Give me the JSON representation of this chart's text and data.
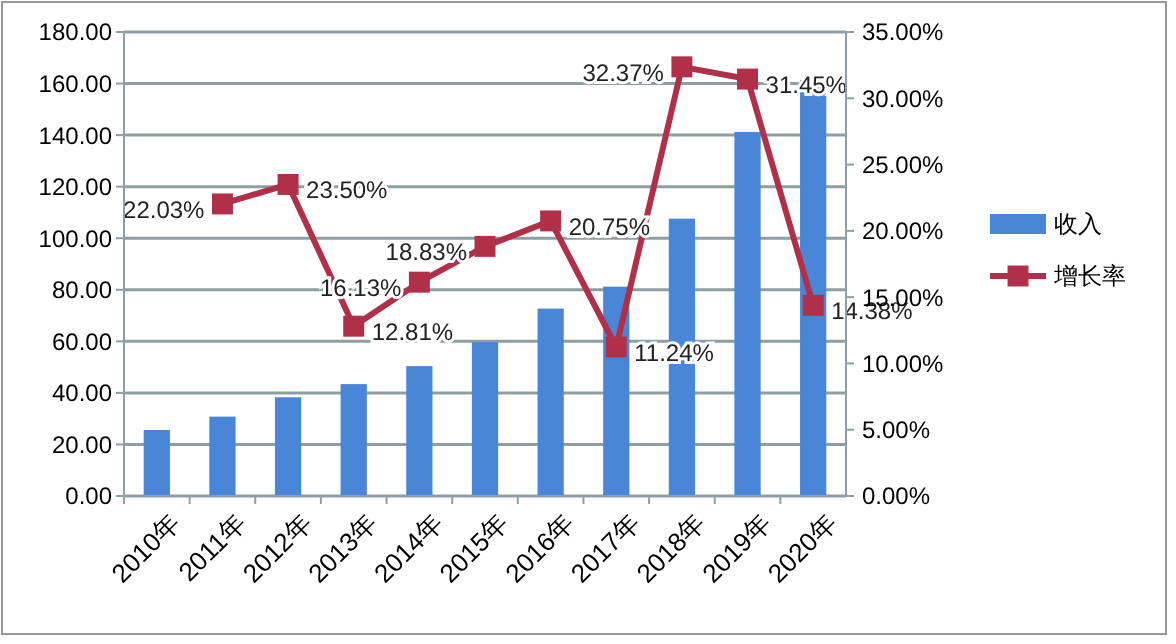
{
  "chart_data": {
    "type": "bar",
    "categories": [
      "2010年",
      "2011年",
      "2012年",
      "2013年",
      "2014年",
      "2015年",
      "2016年",
      "2017年",
      "2018年",
      "2019年",
      "2020年"
    ],
    "series": [
      {
        "name": "收入",
        "color": "#4a86d8",
        "values": [
          25.6,
          30.8,
          38.3,
          43.4,
          50.4,
          59.7,
          72.7,
          81.2,
          107.6,
          141.2,
          161.4
        ]
      },
      {
        "name": "增长率",
        "type": "line",
        "axis": "y2",
        "color": "#b0304a",
        "marker": "square",
        "values": [
          null,
          22.03,
          23.5,
          12.81,
          16.13,
          18.83,
          20.75,
          11.24,
          32.37,
          31.45,
          14.38
        ],
        "value_labels": [
          null,
          "22.03%",
          "23.50%",
          "12.81%",
          "16.13%",
          "18.83%",
          "20.75%",
          "11.24%",
          "32.37%",
          "31.45%",
          "14.38%"
        ]
      }
    ],
    "ylim": [
      0,
      180
    ],
    "yticks": [
      {
        "value": 0,
        "label": "0.00"
      },
      {
        "value": 20,
        "label": "20.00"
      },
      {
        "value": 40,
        "label": "40.00"
      },
      {
        "value": 60,
        "label": "60.00"
      },
      {
        "value": 80,
        "label": "80.00"
      },
      {
        "value": 100,
        "label": "100.00"
      },
      {
        "value": 120,
        "label": "120.00"
      },
      {
        "value": 140,
        "label": "140.00"
      },
      {
        "value": 160,
        "label": "160.00"
      },
      {
        "value": 180,
        "label": "180.00"
      }
    ],
    "y2lim": [
      0,
      35
    ],
    "y2ticks": [
      {
        "value": 0,
        "label": "0.00%"
      },
      {
        "value": 5,
        "label": "5.00%"
      },
      {
        "value": 10,
        "label": "10.00%"
      },
      {
        "value": 15,
        "label": "15.00%"
      },
      {
        "value": 20,
        "label": "20.00%"
      },
      {
        "value": 25,
        "label": "25.00%"
      },
      {
        "value": 30,
        "label": "30.00%"
      },
      {
        "value": 35,
        "label": "35.00%"
      }
    ],
    "grid": "y",
    "legend": "right"
  }
}
